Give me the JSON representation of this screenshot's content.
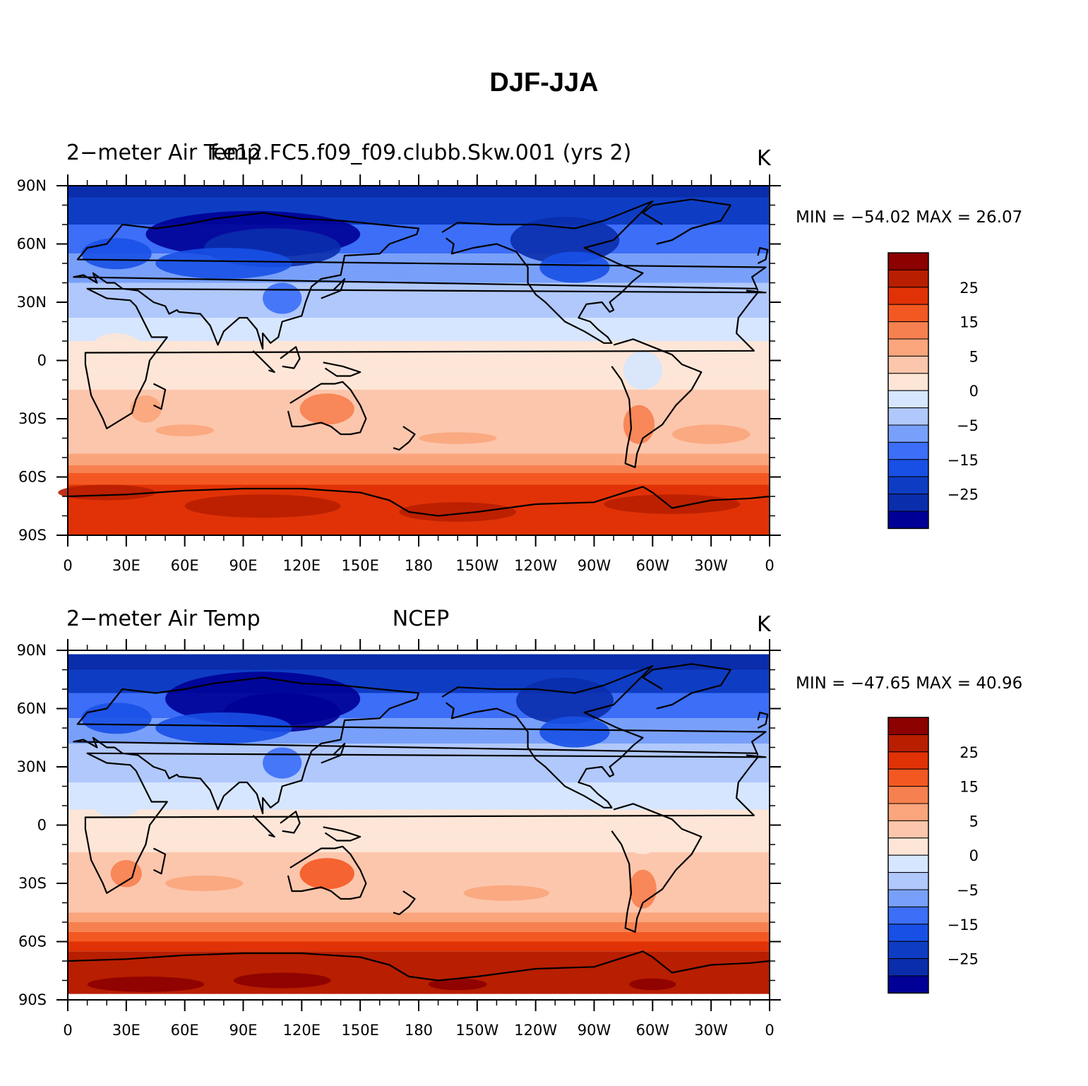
{
  "title": "DJF-JJA",
  "colors": {
    "scale": [
      "#000096",
      "#0a2dac",
      "#0e3dc4",
      "#1850e6",
      "#3c6ef8",
      "#78a0fa",
      "#b0c8fb",
      "#d6e6fe",
      "#fde6d7",
      "#fcc6ac",
      "#faa57c",
      "#f78050",
      "#f45822",
      "#e03206",
      "#b81e00",
      "#8c0000"
    ]
  },
  "colorbar": {
    "labels": [
      "25",
      "15",
      "5",
      "0",
      "−5",
      "−15",
      "−25"
    ]
  },
  "axes": {
    "lat_labels": [
      "90N",
      "60N",
      "30N",
      "0",
      "30S",
      "60S",
      "90S"
    ],
    "lon_labels": [
      "0",
      "30E",
      "60E",
      "90E",
      "120E",
      "150E",
      "180",
      "150W",
      "120W",
      "90W",
      "60W",
      "30W",
      "0"
    ]
  },
  "panels": [
    {
      "left_title": "2−meter Air Temp",
      "center_title": "f.e12.FC5.f09_f09.clubb.Skw.001 (yrs 2)",
      "units": "K",
      "min_max": "MIN = −54.02  MAX =   26.07"
    },
    {
      "left_title": "2−meter Air Temp",
      "center_title": "NCEP",
      "units": "K",
      "min_max": "MIN = −47.65  MAX =   40.96"
    }
  ]
}
